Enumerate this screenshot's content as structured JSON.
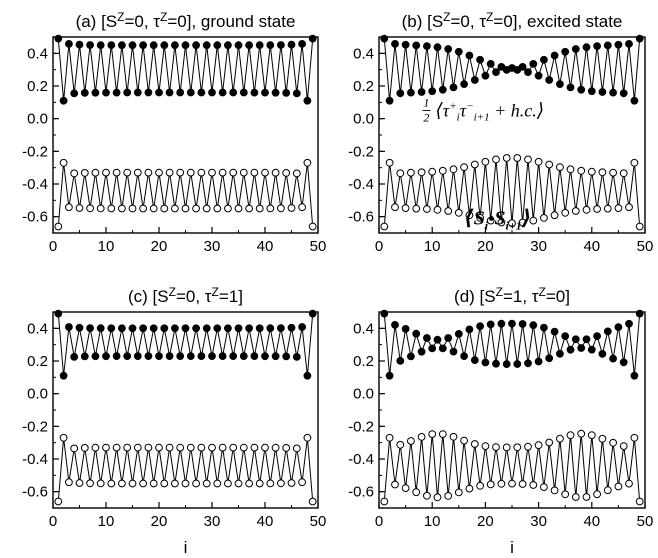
{
  "figure": {
    "x_label": "i"
  },
  "chart_data": [
    {
      "type": "line",
      "title_parts": [
        "(a) [S",
        "Z",
        "=0, τ",
        "Z",
        "=0], ground state"
      ],
      "x_ticks": [
        0,
        10,
        20,
        30,
        40,
        50
      ],
      "y_ticks": [
        0.4,
        0.2,
        0.0,
        -0.2,
        -0.4,
        -0.6
      ],
      "y_tick_labels": [
        "0.4",
        "0.2",
        "0.0",
        "-0.2",
        "-0.4",
        "-0.6"
      ],
      "xlim": [
        0,
        50
      ],
      "ylim": [
        -0.7,
        0.5
      ],
      "x_label": "",
      "series": [
        {
          "marker": "filled",
          "x_range": [
            1,
            49
          ],
          "edge": [
            0.49,
            0.11
          ],
          "odd_interior": 0.45,
          "even_interior": 0.16,
          "dip_amp": 0.0,
          "dip_width": 9
        },
        {
          "marker": "open",
          "x_range": [
            1,
            49
          ],
          "edge": [
            -0.66,
            -0.27
          ],
          "odd_interior": -0.55,
          "even_interior": -0.33,
          "dip_amp": 0.0,
          "dip_width": 9
        }
      ],
      "annotations": []
    },
    {
      "type": "line",
      "title_parts": [
        "(b) [S",
        "Z",
        "=0, τ",
        "Z",
        "=0], excited state"
      ],
      "x_ticks": [
        0,
        10,
        20,
        30,
        40,
        50
      ],
      "y_ticks": [
        0.4,
        0.2,
        0.0,
        -0.2,
        -0.4,
        -0.6
      ],
      "y_tick_labels": [
        "0.4",
        "0.2",
        "0.0",
        "-0.2",
        "-0.4",
        "-0.6"
      ],
      "xlim": [
        0,
        50
      ],
      "ylim": [
        -0.7,
        0.5
      ],
      "x_label": "",
      "series": [
        {
          "marker": "filled",
          "x_range": [
            1,
            49
          ],
          "edge": [
            0.49,
            0.11
          ],
          "odd_interior": 0.45,
          "even_interior": 0.16,
          "dip_amp": 0.14,
          "dip_width": 9
        },
        {
          "marker": "open",
          "x_range": [
            1,
            49
          ],
          "edge": [
            -0.66,
            -0.27
          ],
          "odd_interior": -0.55,
          "even_interior": -0.33,
          "dip_amp": 0.09,
          "dip_width": 9
        }
      ],
      "annotations": [
        {
          "kind": "tau-hopping",
          "x": 23,
          "y": 0.05
        },
        {
          "kind": "spin-corr",
          "x": 23.5,
          "y": -0.6
        }
      ]
    },
    {
      "type": "line",
      "title_parts": [
        "(c) [S",
        "Z",
        "=0, τ",
        "Z",
        "=1]",
        ""
      ],
      "x_ticks": [
        0,
        10,
        20,
        30,
        40,
        50
      ],
      "y_ticks": [
        0.4,
        0.2,
        0.0,
        -0.2,
        -0.4,
        -0.6
      ],
      "y_tick_labels": [
        "0.4",
        "0.2",
        "0.0",
        "-0.2",
        "-0.4",
        "-0.6"
      ],
      "xlim": [
        0,
        50
      ],
      "ylim": [
        -0.7,
        0.5
      ],
      "x_label": "i",
      "series": [
        {
          "marker": "filled",
          "x_range": [
            1,
            49
          ],
          "edge": [
            0.49,
            0.11
          ],
          "odd_interior": 0.4,
          "even_interior": 0.23,
          "dip_amp": 0.0,
          "dip_width": 9
        },
        {
          "marker": "open",
          "x_range": [
            1,
            49
          ],
          "edge": [
            -0.66,
            -0.27
          ],
          "odd_interior": -0.55,
          "even_interior": -0.33,
          "dip_amp": 0.0,
          "dip_width": 9
        }
      ],
      "annotations": []
    },
    {
      "type": "line",
      "title_parts": [
        "(d) [S",
        "Z",
        "=1, τ",
        "Z",
        "=0]",
        ""
      ],
      "x_ticks": [
        0,
        10,
        20,
        30,
        40,
        50
      ],
      "y_ticks": [
        0.4,
        0.2,
        0.0,
        -0.2,
        -0.4,
        -0.6
      ],
      "y_tick_labels": [
        "0.4",
        "0.2",
        "0.0",
        "-0.2",
        "-0.4",
        "-0.6"
      ],
      "xlim": [
        0,
        50
      ],
      "ylim": [
        -0.7,
        0.5
      ],
      "x_label": "i",
      "series": [
        {
          "marker": "filled",
          "x_range": [
            1,
            49
          ],
          "edge": [
            0.49,
            0.11
          ],
          "odd_interior": 0.43,
          "even_interior": 0.18,
          "dip_amp": 0.1,
          "dip_width": 6,
          "dip_centers": [
            11,
            38
          ]
        },
        {
          "marker": "open",
          "x_range": [
            1,
            49
          ],
          "edge": [
            -0.66,
            -0.27
          ],
          "odd_interior": -0.55,
          "even_interior": -0.33,
          "dip_amp": 0.085,
          "dip_width": 6,
          "dip_centers": [
            11,
            38
          ]
        }
      ],
      "annotations": []
    }
  ]
}
